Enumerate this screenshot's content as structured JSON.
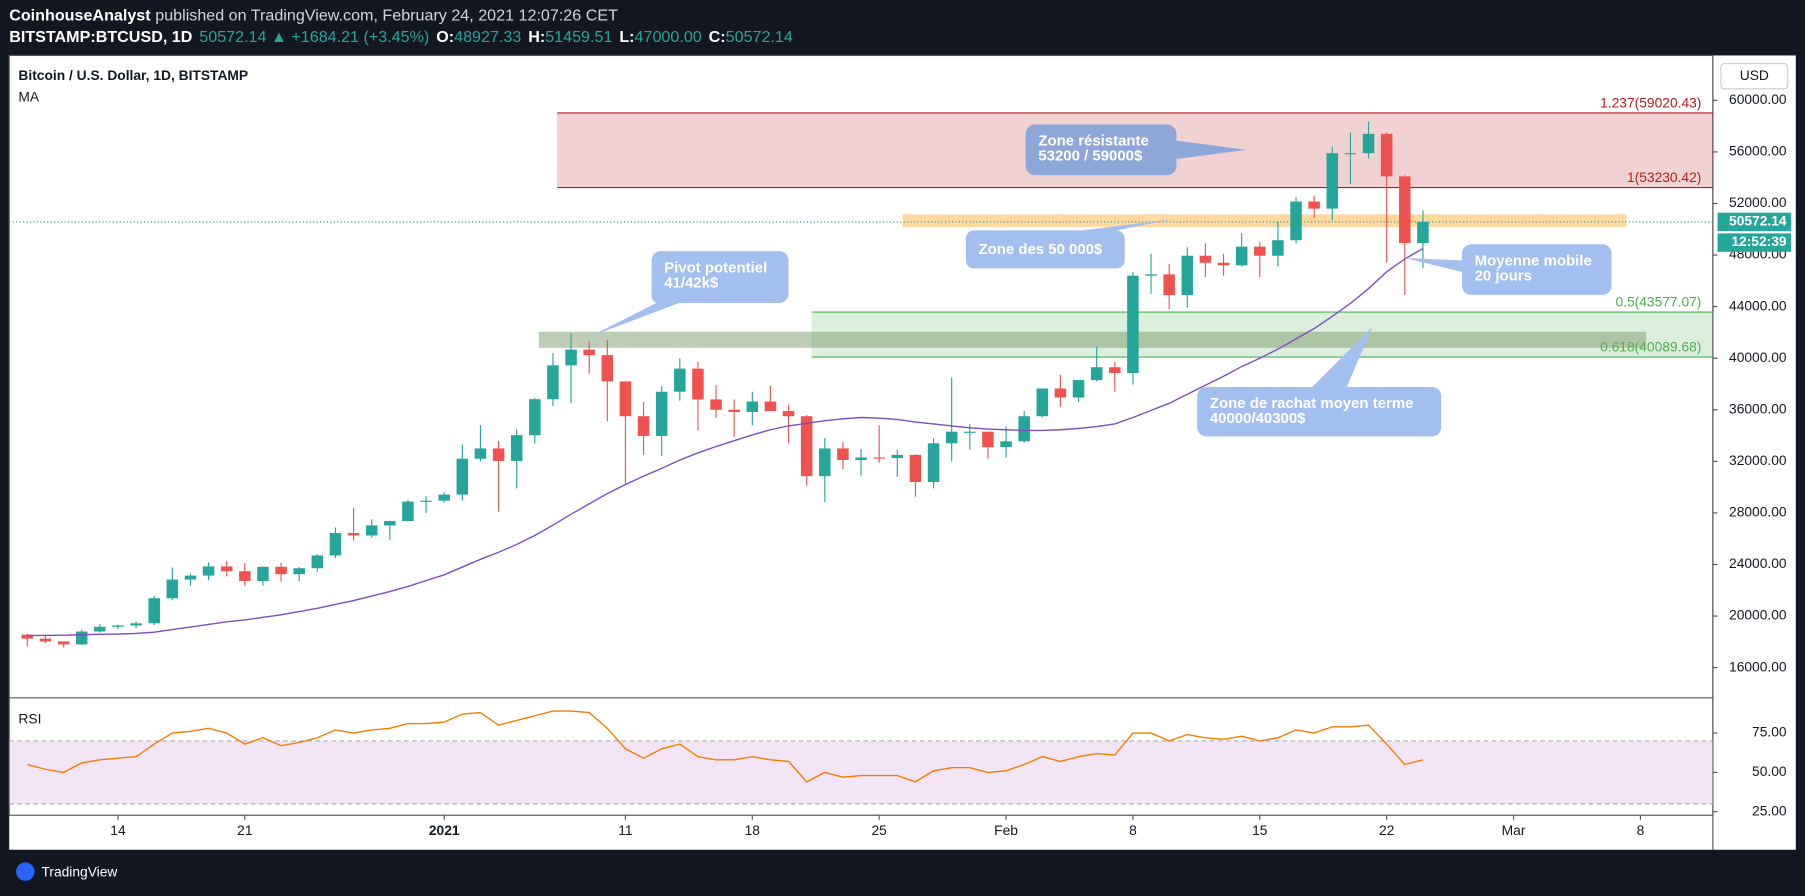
{
  "header": {
    "publisher": "CoinhouseAnalyst",
    "published": "published on TradingView.com, February 24, 2021 12:07:26 CET",
    "symbol": "BITSTAMP:BTCUSD, 1D",
    "quote": "50572.14 ▲ +1684.21 (+3.45%)",
    "ohlc": [
      {
        "label": "O:",
        "value": "48927.33"
      },
      {
        "label": "H:",
        "value": "51459.51"
      },
      {
        "label": "L:",
        "value": "47000.00"
      },
      {
        "label": "C:",
        "value": "50572.14"
      }
    ],
    "brand": "TradingView"
  },
  "chart_data": {
    "type": "candlestick",
    "title": "Bitcoin / U.S. Dollar, 1D, BITSTAMP",
    "currency": "USD",
    "up_color": "#26a69a",
    "down_color": "#ef5350",
    "x": [
      "2020-12-09",
      "2020-12-10",
      "2020-12-11",
      "2020-12-12",
      "2020-12-13",
      "2020-12-14",
      "2020-12-15",
      "2020-12-16",
      "2020-12-17",
      "2020-12-18",
      "2020-12-19",
      "2020-12-20",
      "2020-12-21",
      "2020-12-22",
      "2020-12-23",
      "2020-12-24",
      "2020-12-25",
      "2020-12-26",
      "2020-12-27",
      "2020-12-28",
      "2020-12-29",
      "2020-12-30",
      "2020-12-31",
      "2021-01-01",
      "2021-01-02",
      "2021-01-03",
      "2021-01-04",
      "2021-01-05",
      "2021-01-06",
      "2021-01-07",
      "2021-01-08",
      "2021-01-09",
      "2021-01-10",
      "2021-01-11",
      "2021-01-12",
      "2021-01-13",
      "2021-01-14",
      "2021-01-15",
      "2021-01-16",
      "2021-01-17",
      "2021-01-18",
      "2021-01-19",
      "2021-01-20",
      "2021-01-21",
      "2021-01-22",
      "2021-01-23",
      "2021-01-24",
      "2021-01-25",
      "2021-01-26",
      "2021-01-27",
      "2021-01-28",
      "2021-01-29",
      "2021-01-30",
      "2021-01-31",
      "2021-02-01",
      "2021-02-02",
      "2021-02-03",
      "2021-02-04",
      "2021-02-05",
      "2021-02-06",
      "2021-02-07",
      "2021-02-08",
      "2021-02-09",
      "2021-02-10",
      "2021-02-11",
      "2021-02-12",
      "2021-02-13",
      "2021-02-14",
      "2021-02-15",
      "2021-02-16",
      "2021-02-17",
      "2021-02-18",
      "2021-02-19",
      "2021-02-20",
      "2021-02-21",
      "2021-02-22",
      "2021-02-23",
      "2021-02-24"
    ],
    "open": [
      18550,
      18250,
      18030,
      17800,
      18800,
      19170,
      19270,
      19440,
      21380,
      22830,
      23140,
      23850,
      23480,
      22720,
      23820,
      23250,
      23710,
      24700,
      26440,
      26250,
      27030,
      27370,
      28880,
      28950,
      29420,
      32200,
      33000,
      32030,
      34030,
      36820,
      39450,
      40670,
      40240,
      38200,
      35500,
      33970,
      37400,
      39190,
      36800,
      36000,
      35830,
      36640,
      35900,
      35500,
      30850,
      33000,
      32100,
      32300,
      32250,
      32500,
      30400,
      33400,
      34300,
      34300,
      33100,
      33550,
      35500,
      37650,
      36950,
      38300,
      39300,
      38850,
      46400,
      46500,
      44900,
      47950,
      47400,
      47200,
      48650,
      47950,
      49150,
      52150,
      51600,
      55900,
      55900,
      57400,
      54100,
      48927.33
    ],
    "high": [
      18640,
      18560,
      18050,
      18950,
      19400,
      19340,
      19570,
      21560,
      23770,
      23290,
      24170,
      24290,
      24100,
      23850,
      24140,
      23800,
      24800,
      26870,
      28400,
      27500,
      27400,
      29000,
      29300,
      29600,
      33300,
      34800,
      33600,
      34500,
      36900,
      40400,
      41950,
      41350,
      41400,
      38200,
      36600,
      37850,
      40000,
      39700,
      37900,
      36800,
      37400,
      37850,
      36400,
      35600,
      33800,
      33500,
      32950,
      34800,
      32900,
      32550,
      33800,
      38500,
      34900,
      34300,
      34700,
      35900,
      37650,
      38700,
      38300,
      40900,
      39700,
      46700,
      48100,
      47300,
      48600,
      48900,
      48100,
      49700,
      49000,
      50600,
      52500,
      52600,
      56400,
      57500,
      58350,
      57500,
      54200,
      51459.51
    ],
    "low": [
      17650,
      17910,
      17570,
      17750,
      18720,
      19000,
      19050,
      19300,
      21230,
      22350,
      22790,
      23070,
      22350,
      22350,
      22670,
      22700,
      23450,
      24500,
      25850,
      26100,
      25880,
      27320,
      28000,
      28800,
      28950,
      32000,
      28100,
      29900,
      33400,
      36300,
      36500,
      38800,
      35100,
      30300,
      32500,
      32400,
      36700,
      34400,
      35400,
      33900,
      34800,
      35900,
      33400,
      30100,
      28850,
      31400,
      30900,
      31900,
      30800,
      29250,
      29900,
      32000,
      32900,
      32200,
      32300,
      33450,
      35400,
      36200,
      36600,
      38200,
      37400,
      37950,
      45000,
      43800,
      43900,
      46300,
      46400,
      47100,
      46300,
      47100,
      48900,
      50900,
      50700,
      53500,
      55500,
      47400,
      44900,
      47000
    ],
    "close": [
      18250,
      18030,
      17800,
      18800,
      19170,
      19270,
      19440,
      21380,
      22830,
      23140,
      23850,
      23480,
      22720,
      23820,
      23250,
      23710,
      24700,
      26440,
      26250,
      27030,
      27370,
      28880,
      28950,
      29420,
      32200,
      33000,
      32030,
      34030,
      36820,
      39450,
      40670,
      40240,
      38200,
      35500,
      33970,
      37400,
      39190,
      36800,
      36000,
      35830,
      36640,
      35900,
      35500,
      30850,
      33000,
      32100,
      32300,
      32250,
      32500,
      30400,
      33400,
      34300,
      34300,
      33100,
      33550,
      35500,
      37650,
      36950,
      38300,
      39300,
      38850,
      46400,
      46500,
      44900,
      47950,
      47400,
      47200,
      48650,
      47950,
      49150,
      52150,
      51600,
      55900,
      55900,
      57400,
      54100,
      48927.33,
      50572.14
    ],
    "series": [
      {
        "name": "MA",
        "color": "#7b4fbf",
        "values": [
          18500,
          18500,
          18520,
          18550,
          18580,
          18600,
          18650,
          18750,
          18950,
          19150,
          19350,
          19550,
          19700,
          19900,
          20100,
          20350,
          20600,
          20900,
          21200,
          21550,
          21900,
          22300,
          22750,
          23200,
          23800,
          24400,
          24950,
          25550,
          26250,
          27050,
          27900,
          28700,
          29500,
          30200,
          30850,
          31450,
          32100,
          32650,
          33150,
          33600,
          34050,
          34450,
          34750,
          34950,
          35150,
          35300,
          35400,
          35350,
          35250,
          35050,
          34900,
          34750,
          34600,
          34500,
          34450,
          34400,
          34400,
          34450,
          34550,
          34700,
          34900,
          35400,
          35950,
          36500,
          37200,
          37900,
          38600,
          39350,
          40000,
          40700,
          41500,
          42300,
          43250,
          44250,
          45400,
          46700,
          47700,
          48500
        ]
      }
    ],
    "xlim": [
      "2020-12-08",
      "2021-03-12"
    ],
    "xticks": [
      {
        "value": "2020-12-14",
        "label": "14"
      },
      {
        "value": "2020-12-21",
        "label": "21"
      },
      {
        "value": "2021-01-01",
        "label": "2021"
      },
      {
        "value": "2021-01-11",
        "label": "11"
      },
      {
        "value": "2021-01-18",
        "label": "18"
      },
      {
        "value": "2021-01-25",
        "label": "25"
      },
      {
        "value": "2021-02-01",
        "label": "Feb"
      },
      {
        "value": "2021-02-08",
        "label": "8"
      },
      {
        "value": "2021-02-15",
        "label": "15"
      },
      {
        "value": "2021-02-22",
        "label": "22"
      },
      {
        "value": "2021-03-01",
        "label": "Mar"
      },
      {
        "value": "2021-03-08",
        "label": "8"
      }
    ],
    "ylim": [
      13660,
      63480
    ],
    "yticks": [
      {
        "value": 16000,
        "label": "16000.00"
      },
      {
        "value": 20000,
        "label": "20000.00"
      },
      {
        "value": 24000,
        "label": "24000.00"
      },
      {
        "value": 28000,
        "label": "28000.00"
      },
      {
        "value": 32000,
        "label": "32000.00"
      },
      {
        "value": 36000,
        "label": "36000.00"
      },
      {
        "value": 40000,
        "label": "40000.00"
      },
      {
        "value": 44000,
        "label": "44000.00"
      },
      {
        "value": 48000,
        "label": "48000.00"
      },
      {
        "value": 52000,
        "label": "52000.00"
      },
      {
        "value": 56000,
        "label": "56000.00"
      },
      {
        "value": 60000,
        "label": "60000.00"
      }
    ],
    "last_price": 50572.14,
    "countdown": "12:52:39",
    "fib_levels": [
      {
        "value": 59020.43,
        "label": "1.237(59020.43)",
        "color": "#b71c1c"
      },
      {
        "value": 53230.42,
        "label": "1(53230.42)",
        "color": "#b71c1c"
      },
      {
        "value": 43577.07,
        "label": "0.5(43577.07)",
        "color": "#4caf50"
      },
      {
        "value": 40089.68,
        "label": "0.618(40089.68)",
        "color": "#4caf50"
      }
    ],
    "annotations": [
      {
        "lines": [
          "Zone résistante",
          "53200 / 59000$"
        ]
      },
      {
        "lines": [
          "Zone des 50 000$"
        ]
      },
      {
        "lines": [
          "Pivot potentiel",
          "41/42k$"
        ]
      },
      {
        "lines": [
          "Moyenne mobile",
          "20 jours"
        ]
      },
      {
        "lines": [
          "Zone de rachat moyen terme",
          "40000/40300$"
        ]
      }
    ],
    "rsi": {
      "name": "RSI",
      "color": "#f57c00",
      "band": [
        30,
        70
      ],
      "ylim": [
        22.8,
        97.4
      ],
      "yticks": [
        {
          "value": 25,
          "label": "25.00"
        },
        {
          "value": 50,
          "label": "50.00"
        },
        {
          "value": 75,
          "label": "75.00"
        }
      ],
      "values": [
        55,
        52,
        50,
        56,
        58,
        59,
        60,
        68,
        75,
        76,
        78,
        75,
        68,
        72,
        67,
        69,
        72,
        77,
        75,
        77,
        78,
        81,
        81,
        82,
        87,
        88,
        80,
        83,
        86,
        89,
        89,
        88,
        78,
        65,
        59,
        65,
        68,
        60,
        58,
        58,
        60,
        58,
        57,
        44,
        50,
        47,
        48,
        48,
        48,
        44,
        51,
        53,
        53,
        50,
        51,
        55,
        60,
        57,
        60,
        62,
        61,
        75,
        75,
        70,
        74,
        72,
        71,
        73,
        70,
        72,
        77,
        75,
        79,
        79,
        80,
        68,
        55,
        58
      ]
    }
  }
}
